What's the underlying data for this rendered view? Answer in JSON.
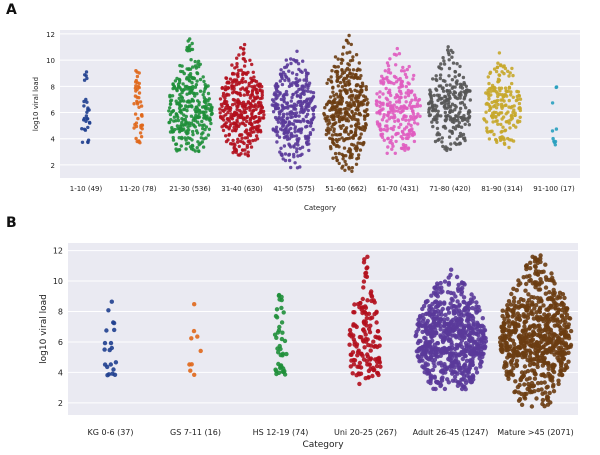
{
  "panels": {
    "a": {
      "letter": "A"
    },
    "b": {
      "letter": "B"
    }
  },
  "chart_data": [
    {
      "type": "swarm",
      "panel": "A",
      "xlabel": "Category",
      "ylabel": "log10 viral load",
      "ylim": [
        1,
        12.3
      ],
      "yticks": [
        2,
        4,
        6,
        8,
        10,
        12
      ],
      "grid": true,
      "categories": [
        "1-10 (49)",
        "11-20 (78)",
        "21-30 (536)",
        "31-40 (630)",
        "41-50 (575)",
        "51-60 (662)",
        "61-70 (431)",
        "71-80 (420)",
        "81-90 (314)",
        "91-100 (17)"
      ],
      "counts": [
        49,
        78,
        536,
        630,
        575,
        662,
        431,
        420,
        314,
        17
      ],
      "colors": [
        "#1f3f8f",
        "#e0671a",
        "#1f8f3a",
        "#b3101d",
        "#5a3a9a",
        "#6b3d12",
        "#e05cc0",
        "#555555",
        "#c7a72a",
        "#29a0bf"
      ],
      "ranges": [
        [
          3.7,
          10.1
        ],
        [
          3.5,
          10.2
        ],
        [
          3.0,
          11.7
        ],
        [
          2.7,
          11.2
        ],
        [
          1.7,
          10.7
        ],
        [
          1.5,
          11.9
        ],
        [
          2.8,
          11.5
        ],
        [
          3.0,
          11.2
        ],
        [
          3.2,
          10.9
        ],
        [
          3.4,
          9.6
        ]
      ],
      "medians": [
        4.8,
        5.2,
        6.2,
        6.4,
        6.0,
        6.2,
        6.3,
        6.4,
        6.5,
        7.0
      ]
    },
    {
      "type": "swarm",
      "panel": "B",
      "xlabel": "Category",
      "ylabel": "log10 viral load",
      "ylim": [
        1.2,
        12.5
      ],
      "yticks": [
        2,
        4,
        6,
        8,
        10,
        12
      ],
      "grid": true,
      "categories": [
        "KG 0-6 (37)",
        "GS 7-11 (16)",
        "HS 12-19 (74)",
        "Uni 20-25 (267)",
        "Adult 26-45 (1247)",
        "Mature >45 (2071)"
      ],
      "counts": [
        37,
        16,
        74,
        267,
        1247,
        2071
      ],
      "colors": [
        "#1f3f8f",
        "#e0671a",
        "#1f8f3a",
        "#b3101d",
        "#5a3a9a",
        "#6b3d12"
      ],
      "ranges": [
        [
          3.7,
          10.1
        ],
        [
          3.8,
          9.8
        ],
        [
          3.7,
          10.1
        ],
        [
          3.2,
          11.7
        ],
        [
          2.8,
          11.1
        ],
        [
          1.6,
          11.8
        ]
      ],
      "medians": [
        4.8,
        5.2,
        5.6,
        5.8,
        6.2,
        6.3
      ]
    }
  ]
}
